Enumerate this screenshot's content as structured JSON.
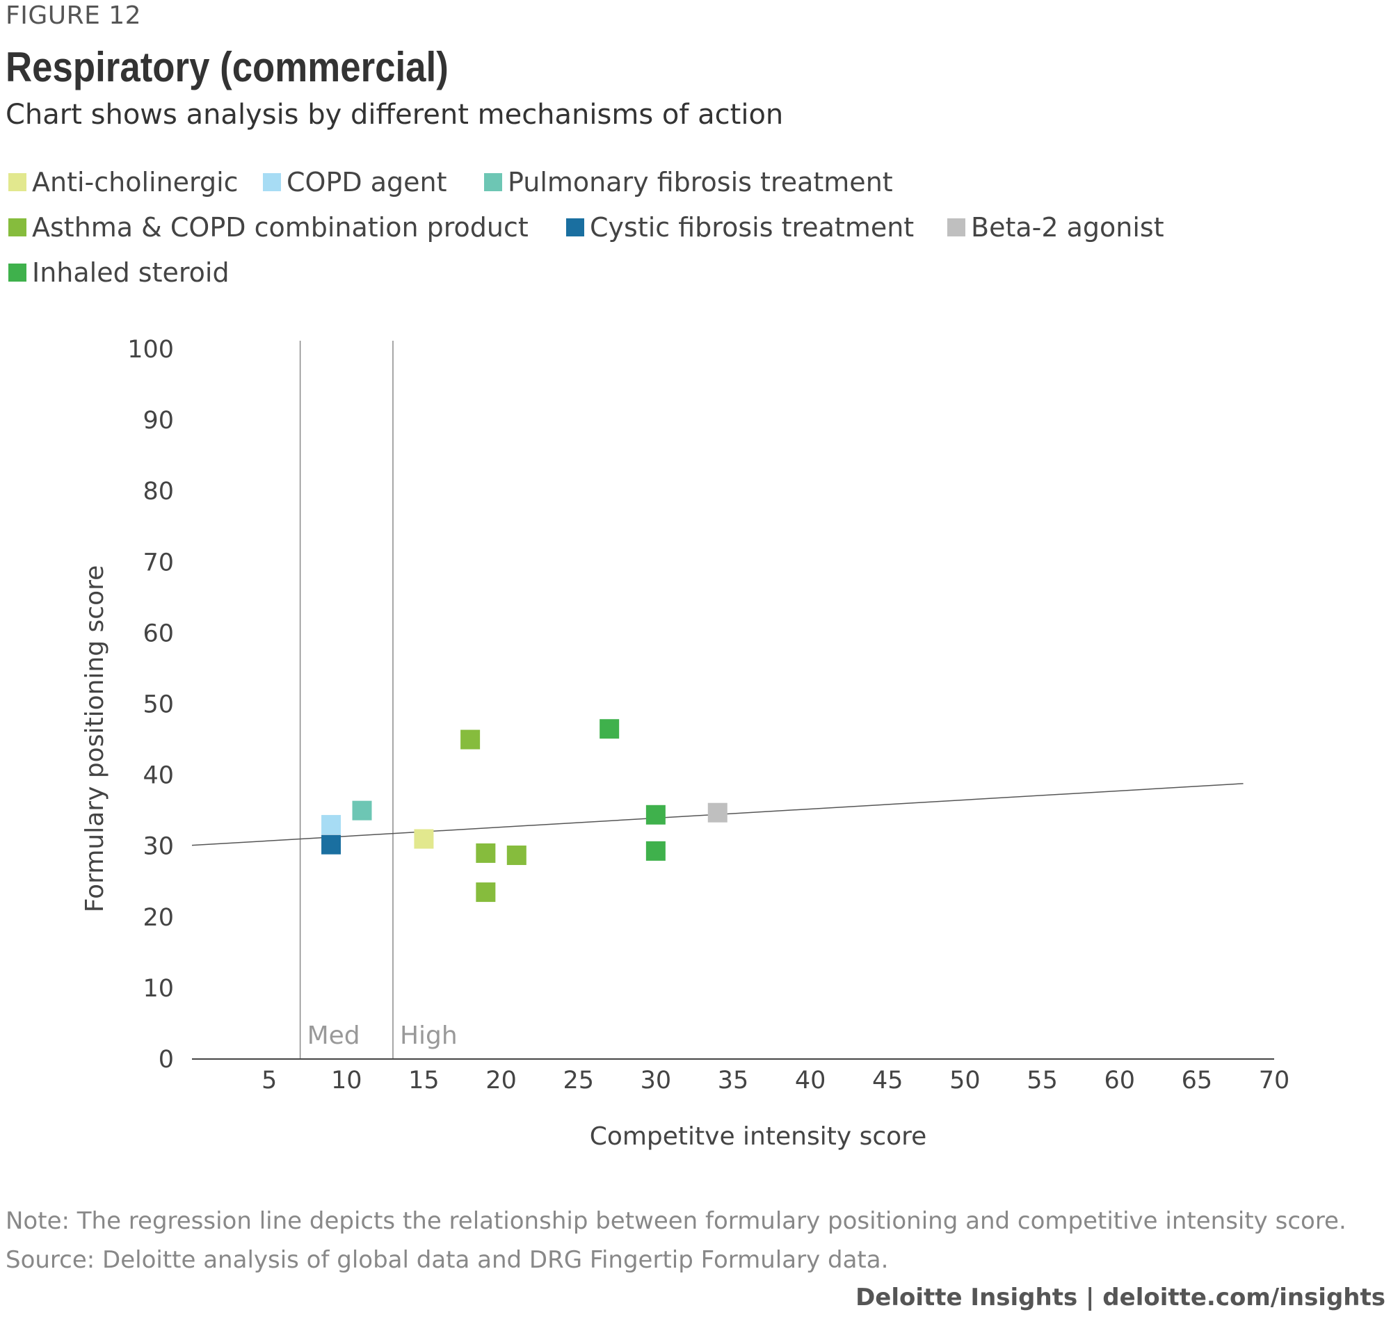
{
  "figure_label": "FIGURE 12",
  "title": "Respiratory (commercial)",
  "subtitle": "Chart shows analysis by different mechanisms of action",
  "legend": [
    {
      "label": "Anti-cholinergic",
      "color": "#e2e88e"
    },
    {
      "label": "COPD agent",
      "color": "#a7dcf4"
    },
    {
      "label": "Pulmonary fibrosis treatment",
      "color": "#6dc6b4"
    },
    {
      "label": "Asthma & COPD combination product",
      "color": "#86bc3d"
    },
    {
      "label": "Cystic fibrosis treatment",
      "color": "#1a6fa0"
    },
    {
      "label": "Beta-2 agonist",
      "color": "#bfbfbf"
    },
    {
      "label": "Inhaled steroid",
      "color": "#3fb14c"
    }
  ],
  "chart_data": {
    "type": "scatter",
    "xlabel": "Competitve intensity score",
    "ylabel": "Formulary positioning score",
    "xlim": [
      0,
      70
    ],
    "ylim": [
      0,
      100
    ],
    "x_ticks": [
      5,
      10,
      15,
      20,
      25,
      30,
      35,
      40,
      45,
      50,
      55,
      60,
      65,
      70
    ],
    "y_ticks": [
      0,
      10,
      20,
      30,
      40,
      50,
      60,
      70,
      80,
      90,
      100
    ],
    "grid": false,
    "legend_position": "top",
    "series": [
      {
        "name": "Anti-cholinergic",
        "color": "#e2e88e",
        "points": [
          {
            "x": 15,
            "y": 31
          }
        ]
      },
      {
        "name": "COPD agent",
        "color": "#a7dcf4",
        "points": [
          {
            "x": 9,
            "y": 33
          }
        ]
      },
      {
        "name": "Pulmonary fibrosis treatment",
        "color": "#6dc6b4",
        "points": [
          {
            "x": 11,
            "y": 35
          }
        ]
      },
      {
        "name": "Asthma & COPD combination product",
        "color": "#86bc3d",
        "points": [
          {
            "x": 18,
            "y": 45
          },
          {
            "x": 19,
            "y": 29
          },
          {
            "x": 21,
            "y": 28.7
          },
          {
            "x": 19,
            "y": 23.5
          }
        ]
      },
      {
        "name": "Cystic fibrosis treatment",
        "color": "#1a6fa0",
        "points": [
          {
            "x": 9,
            "y": 30.2
          }
        ]
      },
      {
        "name": "Beta-2 agonist",
        "color": "#bfbfbf",
        "points": [
          {
            "x": 34,
            "y": 34.7
          }
        ]
      },
      {
        "name": "Inhaled steroid",
        "color": "#3fb14c",
        "points": [
          {
            "x": 27,
            "y": 46.5
          },
          {
            "x": 30,
            "y": 34.4
          },
          {
            "x": 30,
            "y": 29.3
          }
        ]
      }
    ],
    "regression_line": {
      "x": [
        0,
        68
      ],
      "y": [
        30.1,
        38.8
      ]
    },
    "reference_lines": [
      {
        "x": 7,
        "label": "Med"
      },
      {
        "x": 13,
        "label": "High"
      }
    ]
  },
  "note": "Note: The regression line depicts the relationship between formulary positioning and competitive intensity score.",
  "source": "Source: Deloitte analysis of global data and DRG Fingertip Formulary data.",
  "footer": "Deloitte Insights | deloitte.com/insights"
}
